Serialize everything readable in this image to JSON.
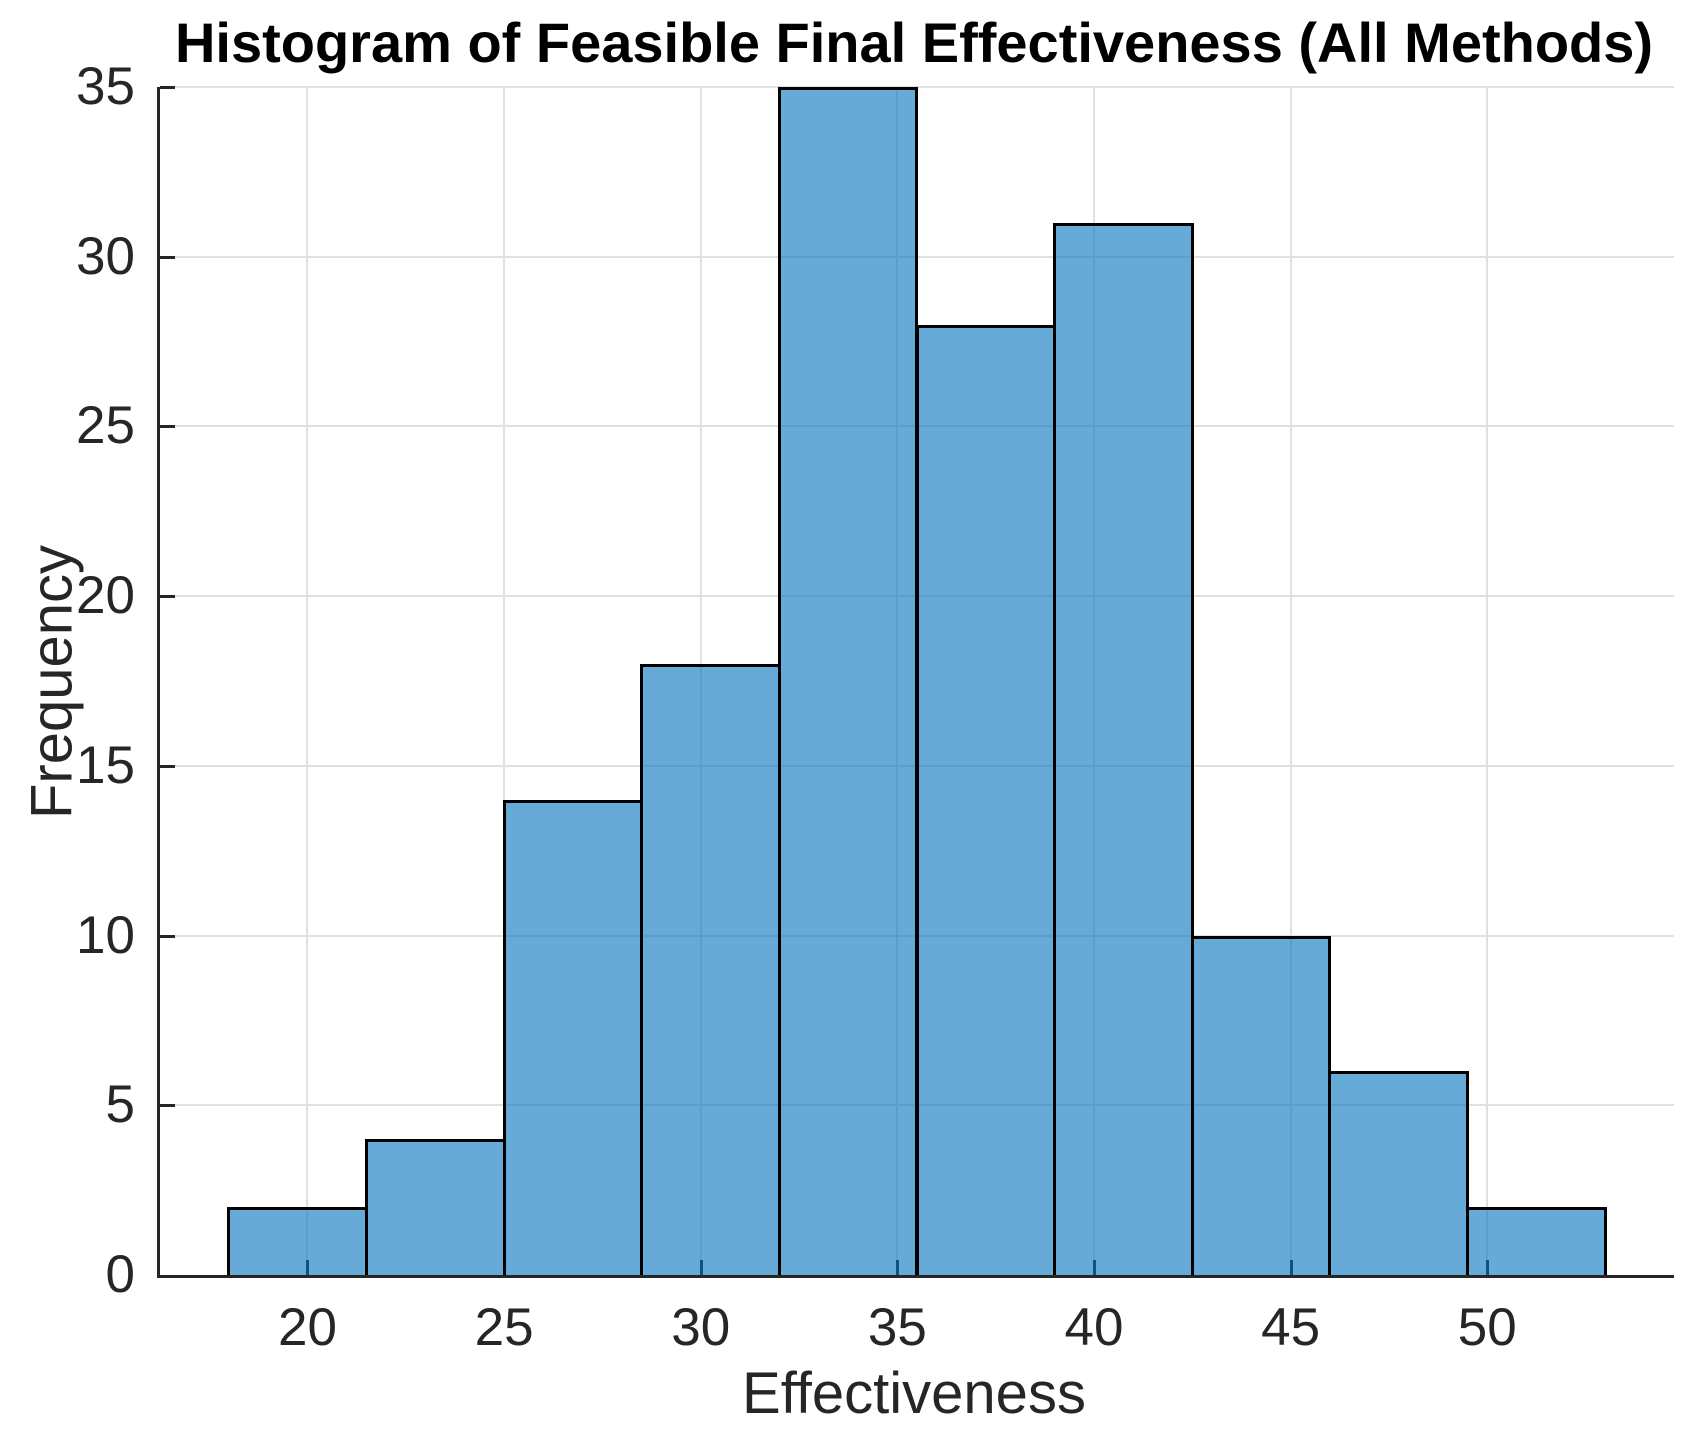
{
  "chart_data": {
    "type": "bar",
    "subtype": "histogram",
    "title": "Histogram of Feasible Final Effectiveness (All Methods)",
    "xlabel": "Effectiveness",
    "ylabel": "Frequency",
    "bin_edges": [
      18,
      21.5,
      25,
      28.5,
      32,
      35.5,
      39,
      42.5,
      46,
      49.5,
      53
    ],
    "counts": [
      2,
      4,
      14,
      18,
      35,
      28,
      31,
      10,
      6,
      2
    ],
    "xlim": [
      16.25,
      54.75
    ],
    "ylim": [
      0,
      35
    ],
    "xticks": [
      20,
      25,
      30,
      35,
      40,
      45,
      50
    ],
    "yticks": [
      0,
      5,
      10,
      15,
      20,
      25,
      30,
      35
    ],
    "grid": true,
    "legend": null,
    "colors": {
      "bar_face": "#0072BD",
      "bar_face_alpha": 0.6,
      "bar_face_rendered": "#66AAD7",
      "bar_edge": "#000000",
      "grid_line": "#E0E0E0",
      "axis_line": "#262626",
      "tick_text": "#262626",
      "title_text": "#000000"
    }
  }
}
